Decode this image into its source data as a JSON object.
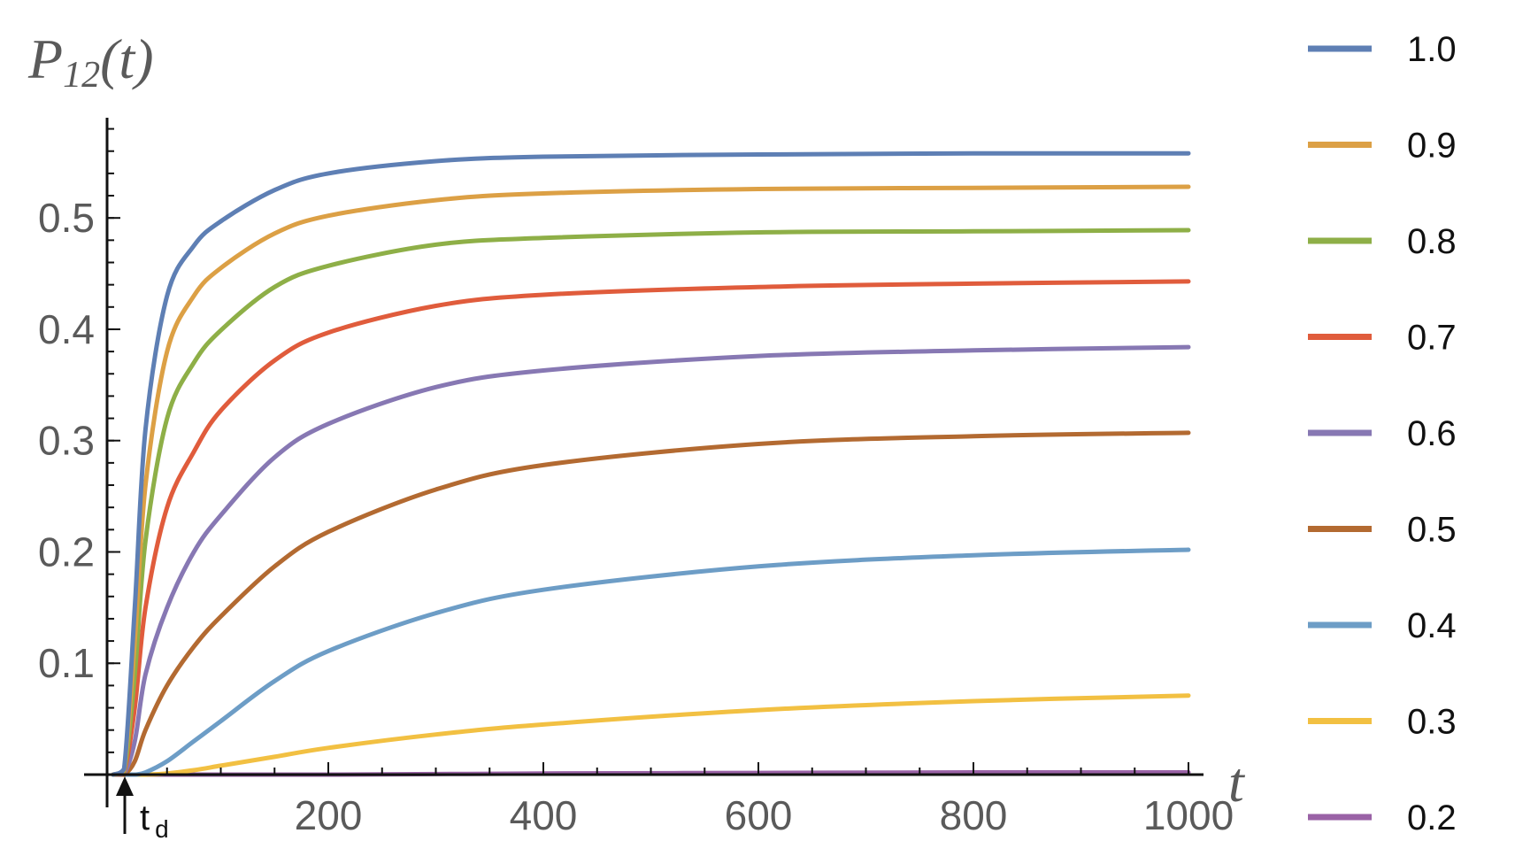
{
  "chart_data": {
    "type": "line",
    "ylabel": {
      "main": "P",
      "sub": "12",
      "arg": "(t)"
    },
    "xlabel": "t",
    "xlim": [
      0,
      1000
    ],
    "ylim": [
      0,
      0.59
    ],
    "x_ticks": [
      200,
      400,
      600,
      800,
      1000
    ],
    "y_ticks": [
      0.1,
      0.2,
      0.3,
      0.4,
      0.5
    ],
    "x_tick_labels": [
      "200",
      "400",
      "600",
      "800",
      "1000"
    ],
    "y_tick_labels": [
      "0.1",
      "0.2",
      "0.3",
      "0.4",
      "0.5"
    ],
    "annotation": {
      "text": "t",
      "sub": "d",
      "x": 15
    },
    "legend_position": "right",
    "grid": false,
    "x": [
      0,
      10,
      20,
      30,
      50,
      75,
      100,
      150,
      200,
      300,
      400,
      600,
      800,
      1000
    ],
    "series": [
      {
        "name": "1.0",
        "color": "#5e7fb4",
        "values": [
          0,
          0.005,
          0.15,
          0.31,
          0.43,
          0.475,
          0.497,
          0.525,
          0.54,
          0.551,
          0.555,
          0.557,
          0.558,
          0.558
        ]
      },
      {
        "name": "0.9",
        "color": "#dca045",
        "values": [
          0,
          0.004,
          0.12,
          0.26,
          0.38,
          0.43,
          0.455,
          0.486,
          0.502,
          0.516,
          0.522,
          0.526,
          0.527,
          0.528
        ]
      },
      {
        "name": "0.8",
        "color": "#8eaf47",
        "values": [
          0,
          0.003,
          0.09,
          0.21,
          0.32,
          0.37,
          0.399,
          0.438,
          0.457,
          0.476,
          0.482,
          0.487,
          0.488,
          0.489
        ]
      },
      {
        "name": "0.7",
        "color": "#e05c3c",
        "values": [
          0,
          0.002,
          0.06,
          0.15,
          0.24,
          0.29,
          0.327,
          0.372,
          0.397,
          0.421,
          0.431,
          0.438,
          0.441,
          0.443
        ]
      },
      {
        "name": "0.6",
        "color": "#8778b3",
        "values": [
          0,
          0.001,
          0.03,
          0.09,
          0.15,
          0.2,
          0.233,
          0.285,
          0.315,
          0.348,
          0.363,
          0.376,
          0.381,
          0.384
        ]
      },
      {
        "name": "0.5",
        "color": "#b36a31",
        "values": [
          0,
          0.0,
          0.012,
          0.04,
          0.08,
          0.115,
          0.142,
          0.187,
          0.218,
          0.256,
          0.278,
          0.297,
          0.304,
          0.307
        ]
      },
      {
        "name": "0.4",
        "color": "#6d9dc6",
        "values": [
          0,
          0.0,
          0.0,
          0.002,
          0.012,
          0.03,
          0.048,
          0.084,
          0.111,
          0.145,
          0.166,
          0.187,
          0.197,
          0.202
        ]
      },
      {
        "name": "0.3",
        "color": "#f2c042",
        "values": [
          0,
          0.0,
          0.0,
          0.0,
          0.001,
          0.004,
          0.008,
          0.016,
          0.024,
          0.036,
          0.045,
          0.058,
          0.066,
          0.071
        ]
      },
      {
        "name": "0.2",
        "color": "#9a62a6",
        "values": [
          0,
          0.0,
          0.0,
          0.0,
          0.0,
          0.0,
          0.0,
          0.0,
          0.0,
          0.0005,
          0.001,
          0.0015,
          0.002,
          0.002
        ]
      }
    ]
  }
}
